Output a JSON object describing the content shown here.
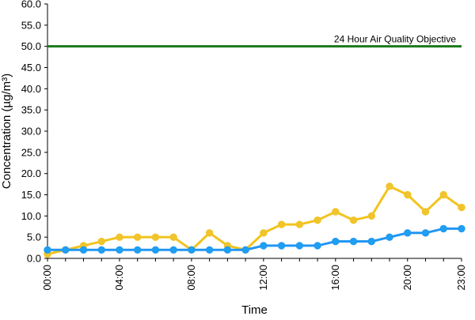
{
  "chart_data": {
    "type": "line",
    "xlabel": "Time",
    "ylabel": "Concentration (µg/m³)",
    "ylim": [
      0,
      60
    ],
    "y_ticks": [
      "0.0",
      "5.0",
      "10.0",
      "15.0",
      "20.0",
      "25.0",
      "30.0",
      "35.0",
      "40.0",
      "45.0",
      "50.0",
      "55.0",
      "60.0"
    ],
    "x_ticks": [
      "00:00",
      "04:00",
      "08:00",
      "12:00",
      "16:00",
      "20:00",
      "23:00"
    ],
    "x_tick_hours": [
      0,
      4,
      8,
      12,
      16,
      20,
      23
    ],
    "x": [
      0,
      1,
      2,
      3,
      4,
      5,
      6,
      7,
      8,
      9,
      10,
      11,
      12,
      13,
      14,
      15,
      16,
      17,
      18,
      19,
      20,
      21,
      22,
      23
    ],
    "series": [
      {
        "color": "#f2c31e",
        "marker_color": "#f0c430",
        "values": [
          1,
          2,
          3,
          4,
          5,
          5,
          5,
          5,
          2,
          6,
          3,
          2,
          6,
          8,
          8,
          9,
          11,
          9,
          10,
          17,
          15,
          11,
          15,
          12
        ]
      },
      {
        "color": "#2196f3",
        "marker_color": "#1ea0f0",
        "values": [
          2,
          2,
          2,
          2,
          2,
          2,
          2,
          2,
          2,
          2,
          2,
          2,
          3,
          3,
          3,
          3,
          4,
          4,
          4,
          5,
          6,
          6,
          7,
          7
        ]
      }
    ],
    "reference_line": {
      "label": "24 Hour Air Quality Objective",
      "value": 50,
      "color": "#1a7a1a"
    },
    "grid": false,
    "legend": "none"
  }
}
